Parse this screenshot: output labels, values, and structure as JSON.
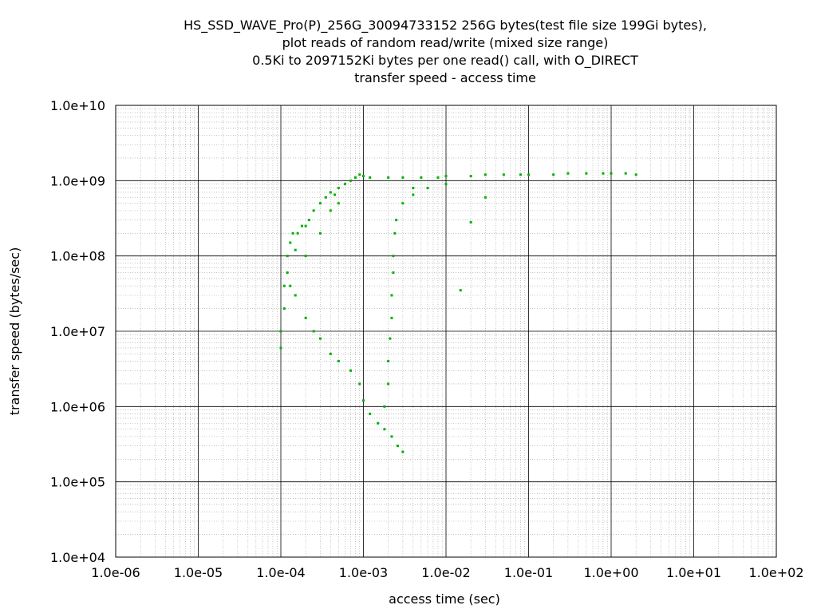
{
  "chart_data": {
    "type": "scatter",
    "title_lines": [
      "HS_SSD_WAVE_Pro(P)_256G_30094733152 256G bytes(test file size 199Gi bytes),",
      "plot reads of random read/write (mixed size range)",
      "0.5Ki to 2097152Ki bytes per one read() call, with O_DIRECT",
      "transfer speed - access time"
    ],
    "xlabel": "access time (sec)",
    "ylabel": "transfer speed (bytes/sec)",
    "x_scale": "log",
    "y_scale": "log",
    "xlim": [
      1e-06,
      100
    ],
    "ylim": [
      10000.0,
      10000000000.0
    ],
    "x_tick_labels": [
      "1.0e-06",
      "1.0e-05",
      "1.0e-04",
      "1.0e-03",
      "1.0e-02",
      "1.0e-01",
      "1.0e+00",
      "1.0e+01",
      "1.0e+02"
    ],
    "y_tick_labels": [
      "1.0e+04",
      "1.0e+05",
      "1.0e+06",
      "1.0e+07",
      "1.0e+08",
      "1.0e+09",
      "1.0e+10"
    ],
    "grid": true,
    "legend": "none",
    "series": [
      {
        "color": "#00b000",
        "points": [
          [
            0.0001,
            6000000.0
          ],
          [
            0.0001,
            10000000.0
          ],
          [
            0.00011,
            20000000.0
          ],
          [
            0.00011,
            40000000.0
          ],
          [
            0.00012,
            60000000.0
          ],
          [
            0.00012,
            100000000.0
          ],
          [
            0.00013,
            150000000.0
          ],
          [
            0.00014,
            200000000.0
          ],
          [
            0.00015,
            120000000.0
          ],
          [
            0.00016,
            200000000.0
          ],
          [
            0.00018,
            250000000.0
          ],
          [
            0.0002,
            250000000.0
          ],
          [
            0.00022,
            300000000.0
          ],
          [
            0.00025,
            400000000.0
          ],
          [
            0.0003,
            500000000.0
          ],
          [
            0.00035,
            600000000.0
          ],
          [
            0.0004,
            700000000.0
          ],
          [
            0.00045,
            650000000.0
          ],
          [
            0.0005,
            800000000.0
          ],
          [
            0.0006,
            900000000.0
          ],
          [
            0.0007,
            1000000000.0
          ],
          [
            0.0008,
            1100000000.0
          ],
          [
            0.0009,
            1200000000.0
          ],
          [
            0.001,
            1150000000.0
          ],
          [
            0.0002,
            100000000.0
          ],
          [
            0.0003,
            200000000.0
          ],
          [
            0.0004,
            400000000.0
          ],
          [
            0.0005,
            500000000.0
          ],
          [
            0.00013,
            40000000.0
          ],
          [
            0.00015,
            30000000.0
          ],
          [
            0.0002,
            15000000.0
          ],
          [
            0.00025,
            10000000.0
          ],
          [
            0.0003,
            8000000.0
          ],
          [
            0.0004,
            5000000.0
          ],
          [
            0.0005,
            4000000.0
          ],
          [
            0.0007,
            3000000.0
          ],
          [
            0.0009,
            2000000.0
          ],
          [
            0.001,
            1200000.0
          ],
          [
            0.0012,
            800000.0
          ],
          [
            0.0015,
            600000.0
          ],
          [
            0.0018,
            500000.0
          ],
          [
            0.0022,
            400000.0
          ],
          [
            0.0026,
            300000.0
          ],
          [
            0.003,
            250000.0
          ],
          [
            0.0018,
            1000000.0
          ],
          [
            0.002,
            2000000.0
          ],
          [
            0.002,
            4000000.0
          ],
          [
            0.0021,
            8000000.0
          ],
          [
            0.0022,
            15000000.0
          ],
          [
            0.0022,
            30000000.0
          ],
          [
            0.0023,
            60000000.0
          ],
          [
            0.0023,
            100000000.0
          ],
          [
            0.0024,
            200000000.0
          ],
          [
            0.0025,
            300000000.0
          ],
          [
            0.003,
            500000000.0
          ],
          [
            0.004,
            800000000.0
          ],
          [
            0.0012,
            1100000000.0
          ],
          [
            0.002,
            1100000000.0
          ],
          [
            0.003,
            1100000000.0
          ],
          [
            0.005,
            1100000000.0
          ],
          [
            0.008,
            1100000000.0
          ],
          [
            0.01,
            1150000000.0
          ],
          [
            0.02,
            1150000000.0
          ],
          [
            0.03,
            1200000000.0
          ],
          [
            0.05,
            1200000000.0
          ],
          [
            0.08,
            1200000000.0
          ],
          [
            0.1,
            1200000000.0
          ],
          [
            0.2,
            1200000000.0
          ],
          [
            0.3,
            1250000000.0
          ],
          [
            0.5,
            1250000000.0
          ],
          [
            0.8,
            1250000000.0
          ],
          [
            1.0,
            1250000000.0
          ],
          [
            1.5,
            1250000000.0
          ],
          [
            2.0,
            1200000000.0
          ],
          [
            0.004,
            650000000.0
          ],
          [
            0.006,
            800000000.0
          ],
          [
            0.01,
            900000000.0
          ],
          [
            0.02,
            280000000.0
          ],
          [
            0.015,
            35000000.0
          ],
          [
            0.03,
            600000000.0
          ]
        ]
      }
    ]
  }
}
